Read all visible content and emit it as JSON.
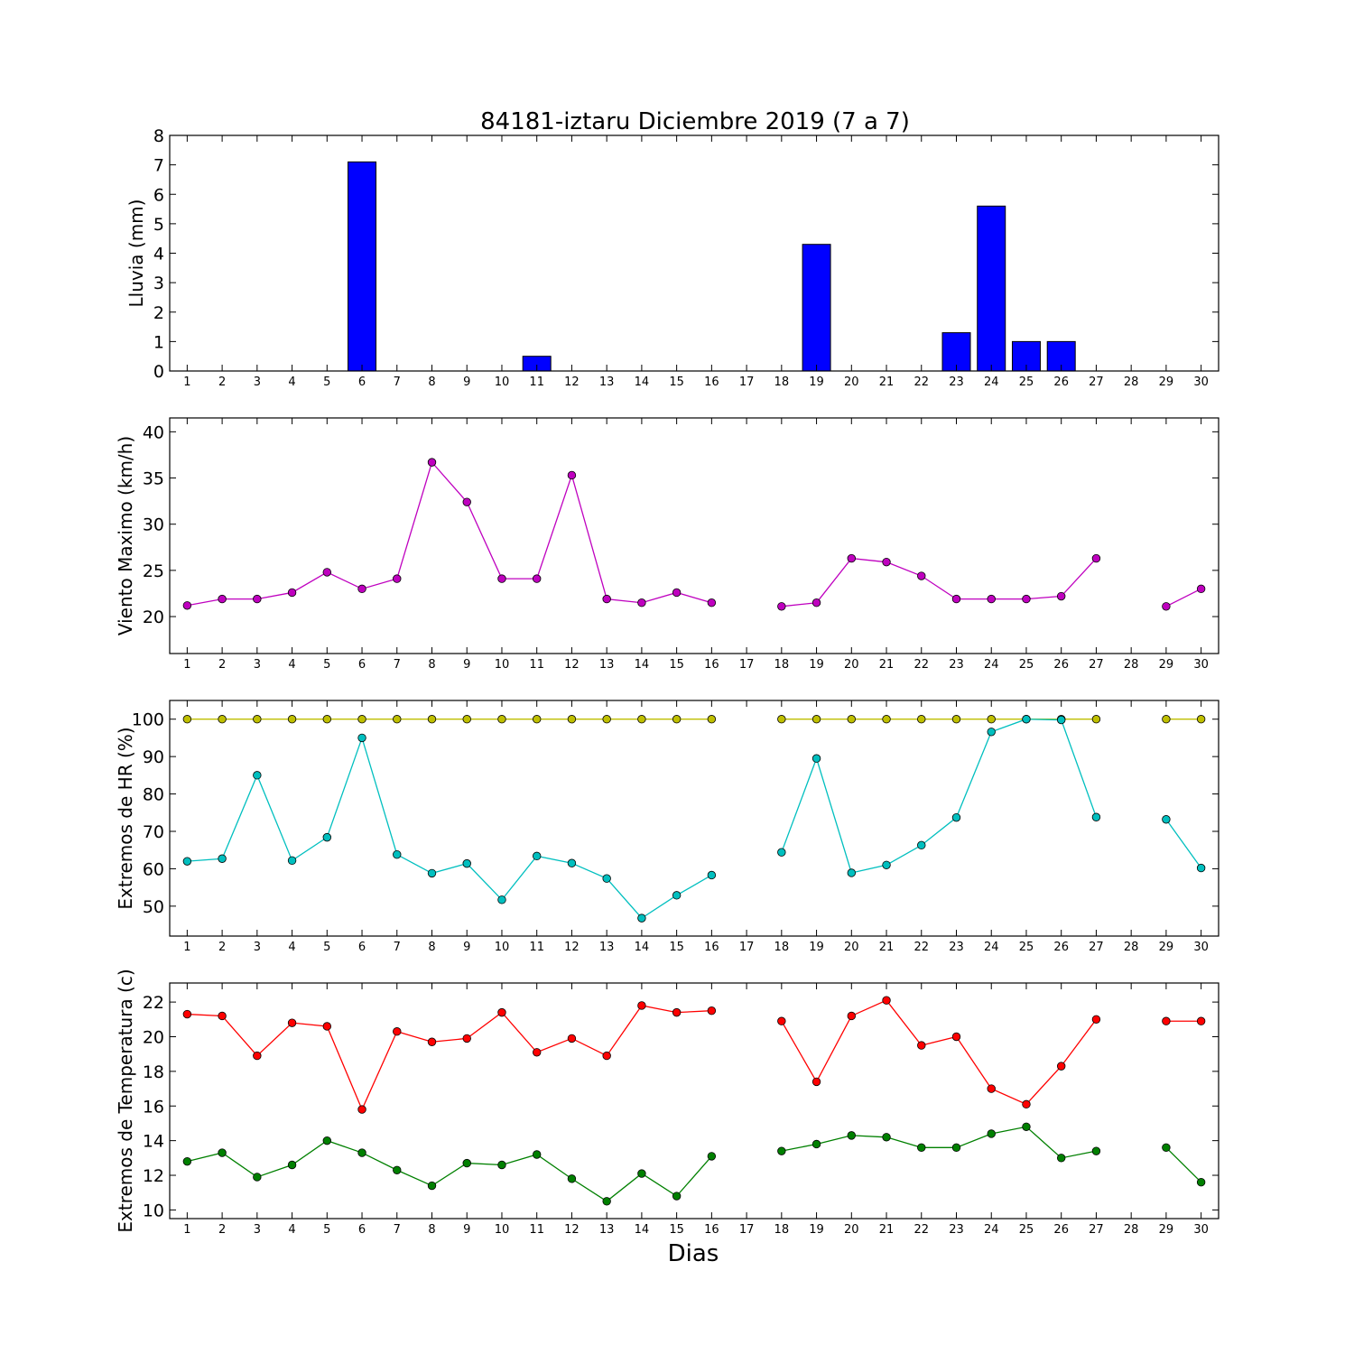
{
  "chart_data": [
    {
      "type": "bar",
      "title": "84181-iztaru Diciembre 2019  (7 a 7)",
      "xlabel": "",
      "ylabel": "Lluvia (mm)",
      "ylim": [
        0,
        8
      ],
      "yticks": [
        0,
        1,
        2,
        3,
        4,
        5,
        6,
        7,
        8
      ],
      "x": [
        1,
        2,
        3,
        4,
        5,
        6,
        7,
        8,
        9,
        10,
        11,
        12,
        13,
        14,
        15,
        16,
        17,
        18,
        19,
        20,
        21,
        22,
        23,
        24,
        25,
        26,
        27,
        28,
        29,
        30
      ],
      "values": [
        0,
        0,
        0,
        0,
        0,
        7.1,
        0,
        0,
        0,
        0,
        0.5,
        0,
        0,
        0,
        0,
        0,
        0,
        0,
        4.3,
        0,
        0,
        0,
        1.3,
        5.6,
        1.0,
        1.0,
        0,
        0,
        0,
        0
      ],
      "color": "#0000ff"
    },
    {
      "type": "line",
      "title": "",
      "xlabel": "",
      "ylabel": "Viento Maximo (km/h)",
      "ylim": [
        16,
        41.5
      ],
      "yticks": [
        20,
        25,
        30,
        35,
        40
      ],
      "x": [
        1,
        2,
        3,
        4,
        5,
        6,
        7,
        8,
        9,
        10,
        11,
        12,
        13,
        14,
        15,
        16,
        17,
        18,
        19,
        20,
        21,
        22,
        23,
        24,
        25,
        26,
        27,
        28,
        29,
        30
      ],
      "series": [
        {
          "color": "#bf00bf",
          "values": [
            21.2,
            21.9,
            21.9,
            22.6,
            24.8,
            23.0,
            24.1,
            36.7,
            32.4,
            24.1,
            24.1,
            35.3,
            21.9,
            21.5,
            22.6,
            21.5,
            null,
            21.1,
            21.5,
            26.3,
            25.9,
            24.4,
            21.9,
            21.9,
            21.9,
            22.2,
            26.3,
            null,
            21.1,
            23.0
          ]
        }
      ]
    },
    {
      "type": "line",
      "title": "",
      "xlabel": "",
      "ylabel": "Extremos de HR (%)",
      "ylim": [
        42,
        105
      ],
      "yticks": [
        50,
        60,
        70,
        80,
        90,
        100
      ],
      "x": [
        1,
        2,
        3,
        4,
        5,
        6,
        7,
        8,
        9,
        10,
        11,
        12,
        13,
        14,
        15,
        16,
        17,
        18,
        19,
        20,
        21,
        22,
        23,
        24,
        25,
        26,
        27,
        28,
        29,
        30
      ],
      "series": [
        {
          "color": "#bfbf00",
          "values": [
            100,
            100,
            100,
            100,
            100,
            100,
            100,
            100,
            100,
            100,
            100,
            100,
            100,
            100,
            100,
            100,
            null,
            100,
            100,
            100,
            100,
            100,
            100,
            100,
            100,
            100,
            100,
            null,
            100,
            100
          ]
        },
        {
          "color": "#00bfbf",
          "values": [
            62,
            62.7,
            85,
            62.2,
            68.4,
            95,
            63.8,
            58.8,
            61.4,
            51.7,
            63.4,
            61.5,
            57.4,
            46.8,
            52.9,
            58.3,
            null,
            64.4,
            89.5,
            58.9,
            61.0,
            66.3,
            73.7,
            96.6,
            100,
            99.8,
            73.8,
            null,
            73.2,
            60.2
          ]
        }
      ]
    },
    {
      "type": "line",
      "title": "",
      "xlabel": "Dias",
      "ylabel": "Extremos de Temperatura (c)",
      "ylim": [
        9.5,
        23.1
      ],
      "yticks": [
        10,
        12,
        14,
        16,
        18,
        20,
        22
      ],
      "x": [
        1,
        2,
        3,
        4,
        5,
        6,
        7,
        8,
        9,
        10,
        11,
        12,
        13,
        14,
        15,
        16,
        17,
        18,
        19,
        20,
        21,
        22,
        23,
        24,
        25,
        26,
        27,
        28,
        29,
        30
      ],
      "series": [
        {
          "color": "#ff0000",
          "values": [
            21.3,
            21.2,
            18.9,
            20.8,
            20.6,
            15.8,
            20.3,
            19.7,
            19.9,
            21.4,
            19.1,
            19.9,
            18.9,
            21.8,
            21.4,
            21.5,
            null,
            20.9,
            17.4,
            21.2,
            22.1,
            19.5,
            20.0,
            17.0,
            16.1,
            18.3,
            21.0,
            null,
            20.9,
            20.9
          ]
        },
        {
          "color": "#008000",
          "values": [
            12.8,
            13.3,
            11.9,
            12.6,
            14.0,
            13.3,
            12.3,
            11.4,
            12.7,
            12.6,
            13.2,
            11.8,
            10.5,
            12.1,
            10.8,
            13.1,
            null,
            13.4,
            13.8,
            14.3,
            14.2,
            13.6,
            13.6,
            14.4,
            14.8,
            13.0,
            13.4,
            null,
            13.6,
            11.6
          ]
        }
      ]
    }
  ]
}
